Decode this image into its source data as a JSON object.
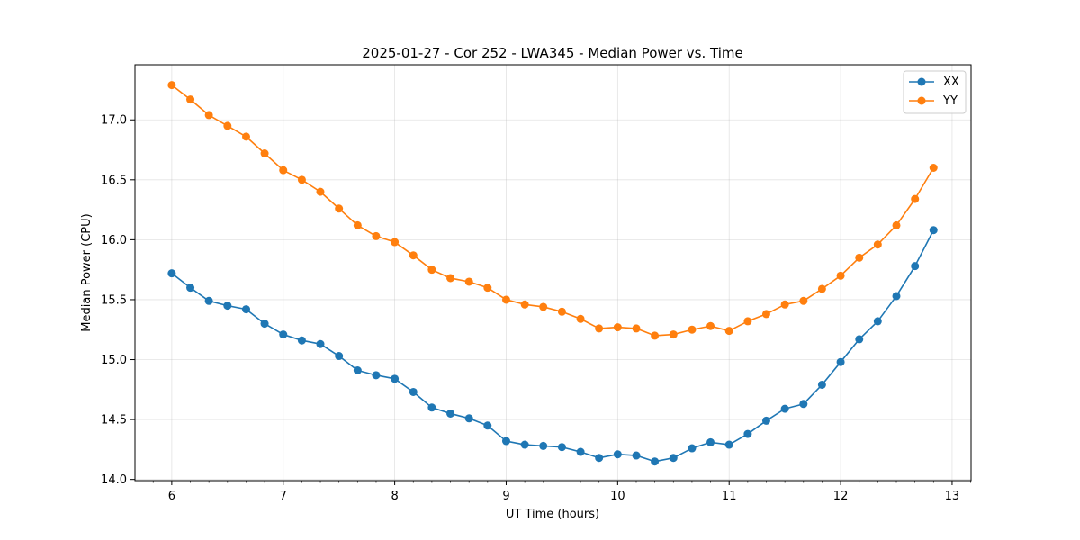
{
  "chart_data": {
    "type": "line",
    "title": "2025-01-27 - Cor 252 - LWA345 - Median Power vs. Time",
    "xlabel": "UT Time (hours)",
    "ylabel": "Median Power (CPU)",
    "xlim": [
      5.67,
      13.17
    ],
    "ylim": [
      13.99,
      17.46
    ],
    "xticks": [
      6,
      7,
      8,
      9,
      10,
      11,
      12,
      13
    ],
    "yticks": [
      14.0,
      14.5,
      15.0,
      15.5,
      16.0,
      16.5,
      17.0
    ],
    "grid": true,
    "legend_position": "top-right",
    "x": [
      6.0,
      6.167,
      6.333,
      6.5,
      6.667,
      6.833,
      7.0,
      7.167,
      7.333,
      7.5,
      7.667,
      7.833,
      8.0,
      8.167,
      8.333,
      8.5,
      8.667,
      8.833,
      9.0,
      9.167,
      9.333,
      9.5,
      9.667,
      9.833,
      10.0,
      10.167,
      10.333,
      10.5,
      10.667,
      10.833,
      11.0,
      11.167,
      11.333,
      11.5,
      11.667,
      11.833,
      12.0,
      12.167,
      12.333,
      12.5,
      12.667,
      12.833
    ],
    "series": [
      {
        "name": "XX",
        "color": "#1f77b4",
        "values": [
          15.72,
          15.6,
          15.49,
          15.45,
          15.42,
          15.3,
          15.21,
          15.16,
          15.13,
          15.03,
          14.91,
          14.87,
          14.84,
          14.73,
          14.6,
          14.55,
          14.51,
          14.45,
          14.32,
          14.29,
          14.28,
          14.27,
          14.23,
          14.18,
          14.21,
          14.2,
          14.15,
          14.18,
          14.26,
          14.31,
          14.29,
          14.38,
          14.49,
          14.59,
          14.63,
          14.79,
          14.98,
          15.17,
          15.32,
          15.53,
          15.78,
          16.08
        ]
      },
      {
        "name": "YY",
        "color": "#ff7f0e",
        "values": [
          17.29,
          17.17,
          17.04,
          16.95,
          16.86,
          16.72,
          16.58,
          16.5,
          16.4,
          16.26,
          16.12,
          16.03,
          15.98,
          15.87,
          15.75,
          15.68,
          15.65,
          15.6,
          15.5,
          15.46,
          15.44,
          15.4,
          15.34,
          15.26,
          15.27,
          15.26,
          15.2,
          15.21,
          15.25,
          15.28,
          15.24,
          15.32,
          15.38,
          15.46,
          15.49,
          15.59,
          15.7,
          15.85,
          15.96,
          16.12,
          16.34,
          16.6
        ]
      }
    ]
  }
}
